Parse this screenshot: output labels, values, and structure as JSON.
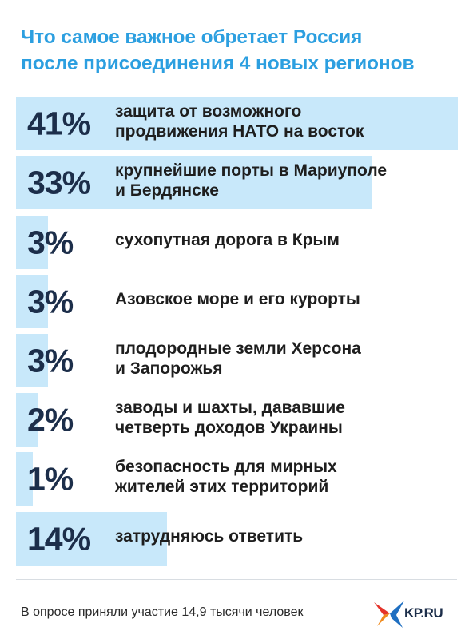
{
  "colors": {
    "title": "#2c9fe0",
    "bar": "#c8e8fa",
    "percent": "#1c2e4a",
    "label": "#1e1e1e",
    "footer": "#2a2a2a",
    "logo_text": "#1c2e4a",
    "logo_star_red": "#e5332a",
    "logo_star_orange": "#f08a1c",
    "logo_star_blue": "#1f6fc1"
  },
  "title_lines": [
    "Что самое важное обретает Россия",
    "после присоединения 4 новых регионов"
  ],
  "chart_data": {
    "type": "bar",
    "orientation": "horizontal",
    "unit": "%",
    "categories": [
      "защита от возможного продвижения НАТО на восток",
      "крупнейшие порты в Мариуполе и Бердянске",
      "сухопутная дорога в Крым",
      "Азовское море и его курорты",
      "плодородные земли Херсона и Запорожья",
      "заводы и шахты, дававшие четверть доходов Украины",
      "безопасность для мирных жителей этих территорий",
      "затрудняюсь ответить"
    ],
    "values": [
      41,
      33,
      3,
      3,
      3,
      2,
      1,
      14
    ],
    "value_labels": [
      "41%",
      "33%",
      "3%",
      "3%",
      "3%",
      "2%",
      "1%",
      "14%"
    ],
    "label_lines": [
      [
        "защита от возможного",
        "продвижения НАТО на восток"
      ],
      [
        "крупнейшие порты в Мариуполе",
        "и Бердянске"
      ],
      [
        "сухопутная дорога в Крым"
      ],
      [
        "Азовское море и его курорты"
      ],
      [
        "плодородные земли Херсона",
        "и Запорожья"
      ],
      [
        "заводы и шахты, дававшие",
        "четверть доходов Украины"
      ],
      [
        "безопасность для мирных",
        "жителей этих территорий"
      ],
      [
        "затрудняюсь ответить"
      ]
    ],
    "xlim": [
      0,
      41
    ],
    "grid": false,
    "legend": "none"
  },
  "footer": {
    "note": "В опросе приняли участие 14,9 тысячи человек",
    "logo_text": "KP.RU"
  }
}
